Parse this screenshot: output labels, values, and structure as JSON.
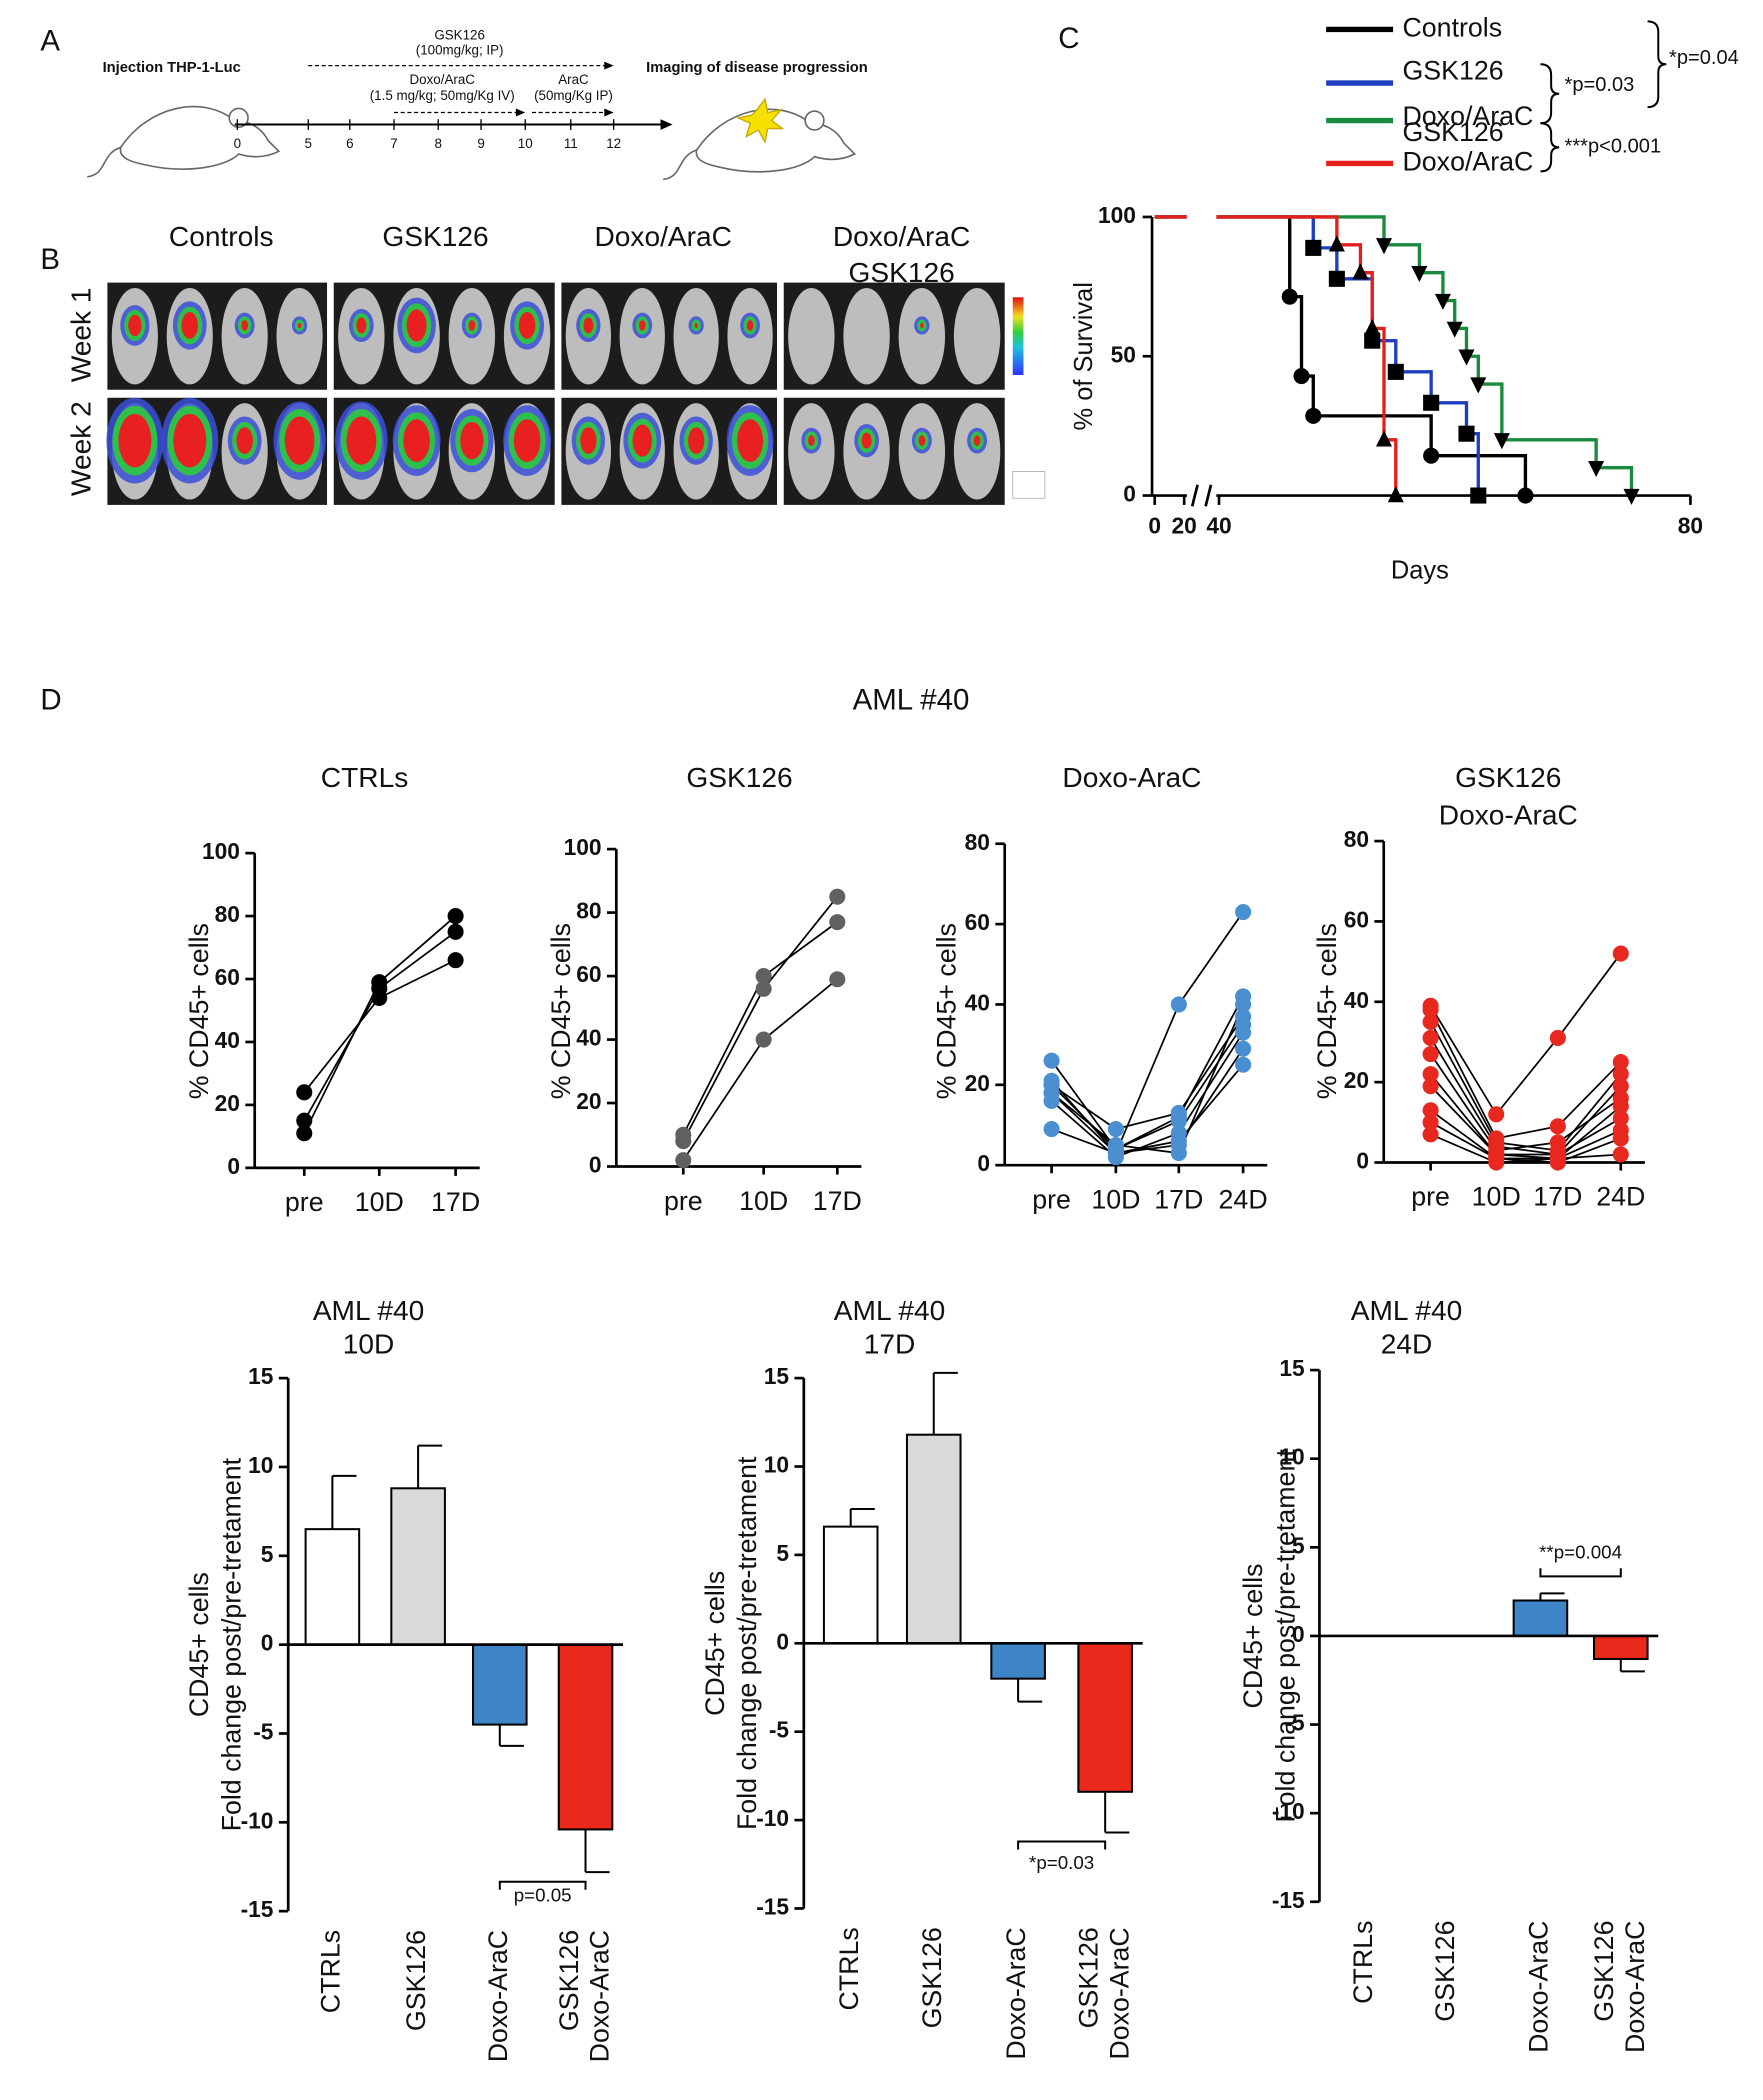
{
  "panel_labels": [
    "A",
    "B",
    "C",
    "D"
  ],
  "panel_a": {
    "start": "Injection THP-1-Luc",
    "end": "Imaging of disease progression",
    "timeline": [
      0,
      5,
      6,
      7,
      8,
      9,
      10,
      11,
      12
    ],
    "gsk": [
      "GSK126",
      "(100mg/kg; IP)"
    ],
    "doxo": [
      "Doxo/AraC",
      "(1.5 mg/kg; 50mg/Kg IV)"
    ],
    "arac": [
      "AraC",
      "(50mg/Kg IP)"
    ]
  },
  "panel_b": {
    "columns": [
      "Controls",
      "GSK126",
      "Doxo/AraC",
      [
        "Doxo/AraC",
        "GSK126"
      ]
    ],
    "rows": [
      "Week 1",
      "Week 2"
    ]
  },
  "section_title": "AML #40",
  "chart_data": [
    {
      "type": "survival",
      "ylabel": "% of Survival",
      "xlabel": "Days",
      "xlim": [
        0,
        80
      ],
      "xbreak": [
        20,
        40
      ],
      "xticks": [
        0,
        20,
        40,
        80
      ],
      "ylim": [
        0,
        100
      ],
      "yticks": [
        0,
        50,
        100
      ],
      "series": [
        {
          "name": "Controls",
          "color": "#000000",
          "marker": "circle",
          "x": [
            0,
            46,
            47,
            48,
            58,
            66
          ],
          "values": [
            100,
            71.4,
            42.9,
            28.6,
            14.3,
            0
          ]
        },
        {
          "name": "GSK126",
          "color": "#1f3fbf",
          "marker": "square",
          "x": [
            0,
            48,
            50,
            53,
            55,
            58,
            61,
            62
          ],
          "values": [
            100,
            88.9,
            77.8,
            55.6,
            44.4,
            33.3,
            22.2,
            0
          ]
        },
        {
          "name": "Doxo/AraC",
          "color": "#1a8a3c",
          "marker": "triangle-down",
          "x": [
            0,
            54,
            57,
            59,
            60,
            61,
            62,
            64,
            72,
            75
          ],
          "values": [
            100,
            90,
            80,
            70,
            60,
            50,
            40,
            20,
            10,
            0
          ]
        },
        {
          "name": [
            "GSK126",
            "Doxo/AraC"
          ],
          "color": "#e3201b",
          "marker": "triangle-up",
          "x": [
            0,
            50,
            52,
            53,
            54,
            55
          ],
          "values": [
            100,
            90,
            80,
            60,
            20,
            0
          ]
        }
      ],
      "annotations": [
        "*p=0.03",
        "*p=0.04",
        "***p<0.001"
      ]
    },
    {
      "type": "line",
      "title": [
        "CTRLs"
      ],
      "ylabel": "% CD45+ cells",
      "categories": [
        "pre",
        "10D",
        "17D"
      ],
      "color": "#000000",
      "ylim": [
        0,
        100
      ],
      "yticks": [
        0,
        20,
        40,
        60,
        80,
        100
      ],
      "series": [
        {
          "values": [
            11,
            59,
            80
          ]
        },
        {
          "values": [
            15,
            57,
            75
          ]
        },
        {
          "values": [
            24,
            54,
            66
          ]
        }
      ]
    },
    {
      "type": "line",
      "title": [
        "GSK126"
      ],
      "ylabel": "% CD45+ cells",
      "categories": [
        "pre",
        "10D",
        "17D"
      ],
      "color": "#606060",
      "ylim": [
        0,
        100
      ],
      "yticks": [
        0,
        20,
        40,
        60,
        80,
        100
      ],
      "series": [
        {
          "values": [
            10,
            60,
            77
          ]
        },
        {
          "values": [
            8,
            56,
            85
          ]
        },
        {
          "values": [
            2,
            40,
            59
          ]
        }
      ]
    },
    {
      "type": "line",
      "title": [
        "Doxo-AraC"
      ],
      "ylabel": "% CD45+ cells",
      "categories": [
        "pre",
        "10D",
        "17D",
        "24D"
      ],
      "color": "#4a8fd0",
      "ylim": [
        0,
        80
      ],
      "yticks": [
        0,
        20,
        40,
        60,
        80
      ],
      "series": [
        {
          "values": [
            26,
            4,
            12,
            42
          ]
        },
        {
          "values": [
            21,
            3,
            40,
            63
          ]
        },
        {
          "values": [
            20,
            9,
            13,
            37
          ]
        },
        {
          "values": [
            18,
            5,
            3,
            40
          ]
        },
        {
          "values": [
            16,
            2,
            8,
            33
          ]
        },
        {
          "values": [
            9,
            3,
            5,
            29
          ]
        },
        {
          "values": [
            20,
            4,
            11,
            35
          ]
        },
        {
          "values": [
            18,
            3,
            6,
            25
          ]
        }
      ]
    },
    {
      "type": "line",
      "title": [
        "GSK126",
        "Doxo-AraC"
      ],
      "ylabel": "% CD45+ cells",
      "categories": [
        "pre",
        "10D",
        "17D",
        "24D"
      ],
      "color": "#e8281e",
      "ylim": [
        0,
        80
      ],
      "yticks": [
        0,
        20,
        40,
        60,
        80
      ],
      "series": [
        {
          "values": [
            39,
            12,
            31,
            52
          ]
        },
        {
          "values": [
            38,
            6,
            9,
            25
          ]
        },
        {
          "values": [
            35,
            5,
            3,
            22
          ]
        },
        {
          "values": [
            31,
            4,
            2,
            19
          ]
        },
        {
          "values": [
            27,
            3,
            5,
            16
          ]
        },
        {
          "values": [
            22,
            2,
            1,
            14
          ]
        },
        {
          "values": [
            19,
            2,
            2,
            11
          ]
        },
        {
          "values": [
            13,
            1,
            1,
            8
          ]
        },
        {
          "values": [
            10,
            1,
            0,
            6
          ]
        },
        {
          "values": [
            7,
            0,
            1,
            2
          ]
        }
      ]
    },
    {
      "type": "bar",
      "title": [
        "AML #40",
        "10D"
      ],
      "ylabel": [
        "CD45+ cells",
        "Fold change post/pre-tretament"
      ],
      "categories": [
        "CTRLs",
        "GSK126",
        "Doxo-AraC",
        [
          "GSK126",
          "Doxo-AraC"
        ]
      ],
      "values": [
        6.5,
        8.8,
        -4.5,
        -10.4
      ],
      "errors": [
        3.0,
        2.4,
        1.2,
        2.4
      ],
      "colors": [
        "#ffffff",
        "#d9d9d9",
        "#3d85c6",
        "#e8291c"
      ],
      "ylim": [
        -15,
        15
      ],
      "yticks": [
        15,
        10,
        5,
        0,
        -5,
        -10,
        -15
      ],
      "annotation": "p=0.05"
    },
    {
      "type": "bar",
      "title": [
        "AML #40",
        "17D"
      ],
      "ylabel": [
        "CD45+ cells",
        "Fold change post/pre-tretament"
      ],
      "categories": [
        "CTRLs",
        "GSK126",
        "Doxo-AraC",
        [
          "GSK126",
          "Doxo-AraC"
        ]
      ],
      "values": [
        6.6,
        11.8,
        -2.0,
        -8.4
      ],
      "errors": [
        1.0,
        3.5,
        1.3,
        2.3
      ],
      "colors": [
        "#ffffff",
        "#d9d9d9",
        "#3d85c6",
        "#e8291c"
      ],
      "ylim": [
        -15,
        15
      ],
      "yticks": [
        15,
        10,
        5,
        0,
        -5,
        -10,
        -15
      ],
      "annotation": "*p=0.03"
    },
    {
      "type": "bar",
      "title": [
        "AML #40",
        "24D"
      ],
      "ylabel": [
        "CD45+ cells",
        "Fold change post/pre-tretament"
      ],
      "categories": [
        "CTRLs",
        "GSK126",
        "Doxo-AraC",
        [
          "GSK126",
          "Doxo-AraC"
        ]
      ],
      "values": [
        null,
        null,
        2.0,
        -1.3
      ],
      "errors": [
        null,
        null,
        0.4,
        0.7
      ],
      "colors": [
        "#ffffff",
        "#d9d9d9",
        "#3d85c6",
        "#e8291c"
      ],
      "ylim": [
        -15,
        15
      ],
      "yticks": [
        15,
        10,
        5,
        0,
        -5,
        -10,
        -15
      ],
      "annotation": "**p=0.004"
    }
  ]
}
